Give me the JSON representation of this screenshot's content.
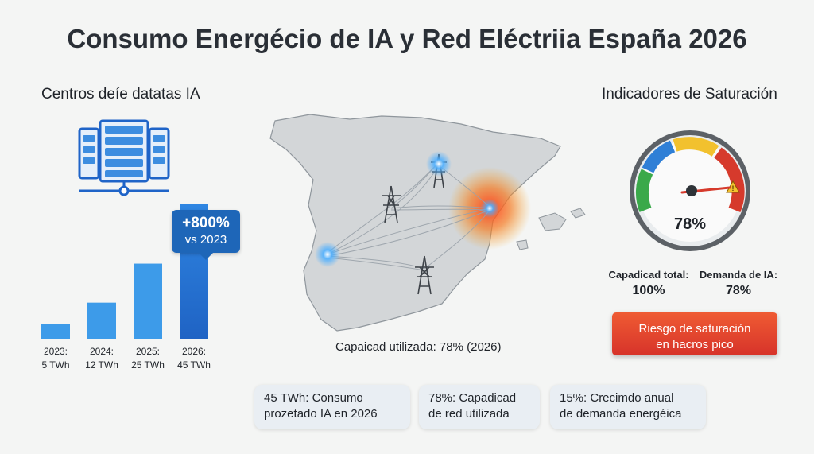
{
  "title": "Consumo Energécio de IA y Red Eléctriia España 2026",
  "left_panel": {
    "heading": "Centros deíe datatas IA",
    "callout": {
      "line1": "+800%",
      "line2": "vs 2023"
    }
  },
  "map_panel": {
    "caption": "Capaicad utilizada: 78% (2026)"
  },
  "right_panel": {
    "heading": "Indicadores de Saturación",
    "gauge_value_label": "78%",
    "capacity_total": {
      "label": "Capadicad total:",
      "value": "100%"
    },
    "ai_demand": {
      "label": "Demanda de IA:",
      "value": "78%"
    },
    "risk_button": {
      "line1": "Riesgo de saturación",
      "line2": "en hacros pico"
    }
  },
  "stat_cards": [
    {
      "line1": "45 TWh: Consumo",
      "line2": "prozetado IA en 2026"
    },
    {
      "line1": "78%: Capadicad",
      "line2": "de red utilizada"
    },
    {
      "line1": "15%: Crecimdo anual",
      "line2": "de demanda energéica"
    }
  ],
  "colors": {
    "bar_light": "#3d9be9",
    "bar_dark": "#1f64c8",
    "hotspot": "#f0562a",
    "node_glow": "#3aa0f0",
    "gauge_green": "#3aa94a",
    "gauge_yellow": "#f2c12e",
    "gauge_blue": "#2f7fd6",
    "gauge_red": "#d63a2c"
  },
  "chart_data": {
    "type": "bar",
    "categories": [
      "2023:",
      "2024:",
      "2025:",
      "2026:"
    ],
    "labels_line2": [
      "5 TWh",
      "12 TWh",
      "25 TWh",
      "45 TWh"
    ],
    "values": [
      5,
      12,
      25,
      45
    ],
    "unit": "TWh",
    "title": "",
    "xlabel": "",
    "ylabel": ""
  }
}
